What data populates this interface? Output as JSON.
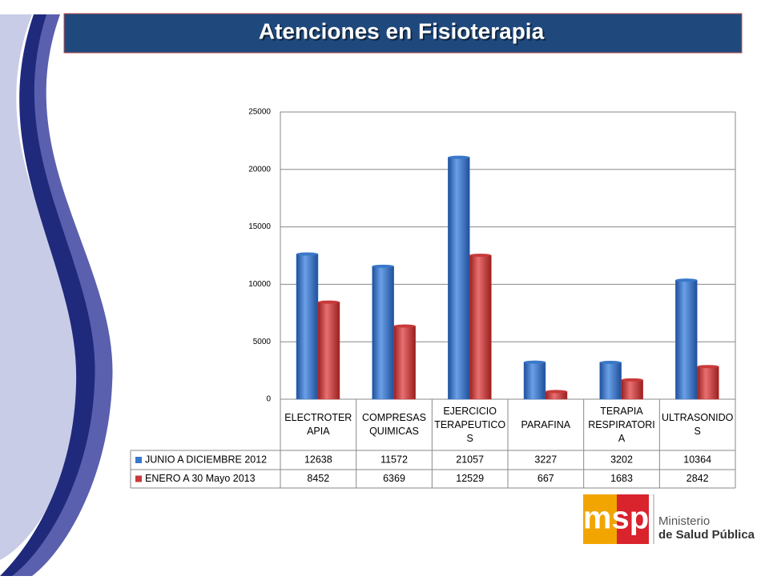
{
  "chart_data": {
    "type": "bar",
    "title": "Atenciones en Fisioterapia",
    "categories": [
      "ELECTROTERAPIA",
      "COMPRESAS QUIMICAS",
      "EJERCICIO TERAPEUTICOS",
      "PARAFINA",
      "TERAPIA RESPIRATORIA",
      "ULTRASONIDOS"
    ],
    "series": [
      {
        "name": "JUNIO A DICIEMBRE 2012",
        "color": "#3a78c8",
        "values": [
          12638,
          11572,
          21057,
          3227,
          3202,
          10364
        ]
      },
      {
        "name": "ENERO A 30 Mayo 2013",
        "color": "#c83a3a",
        "values": [
          8452,
          6369,
          12529,
          667,
          1683,
          2842
        ]
      }
    ],
    "ylim": [
      0,
      25000
    ],
    "yticks": [
      0,
      5000,
      10000,
      15000,
      20000,
      25000
    ],
    "grid": true
  },
  "logo": {
    "mark": "msp",
    "line1": "Ministerio",
    "line2": "de Salud Pública"
  }
}
